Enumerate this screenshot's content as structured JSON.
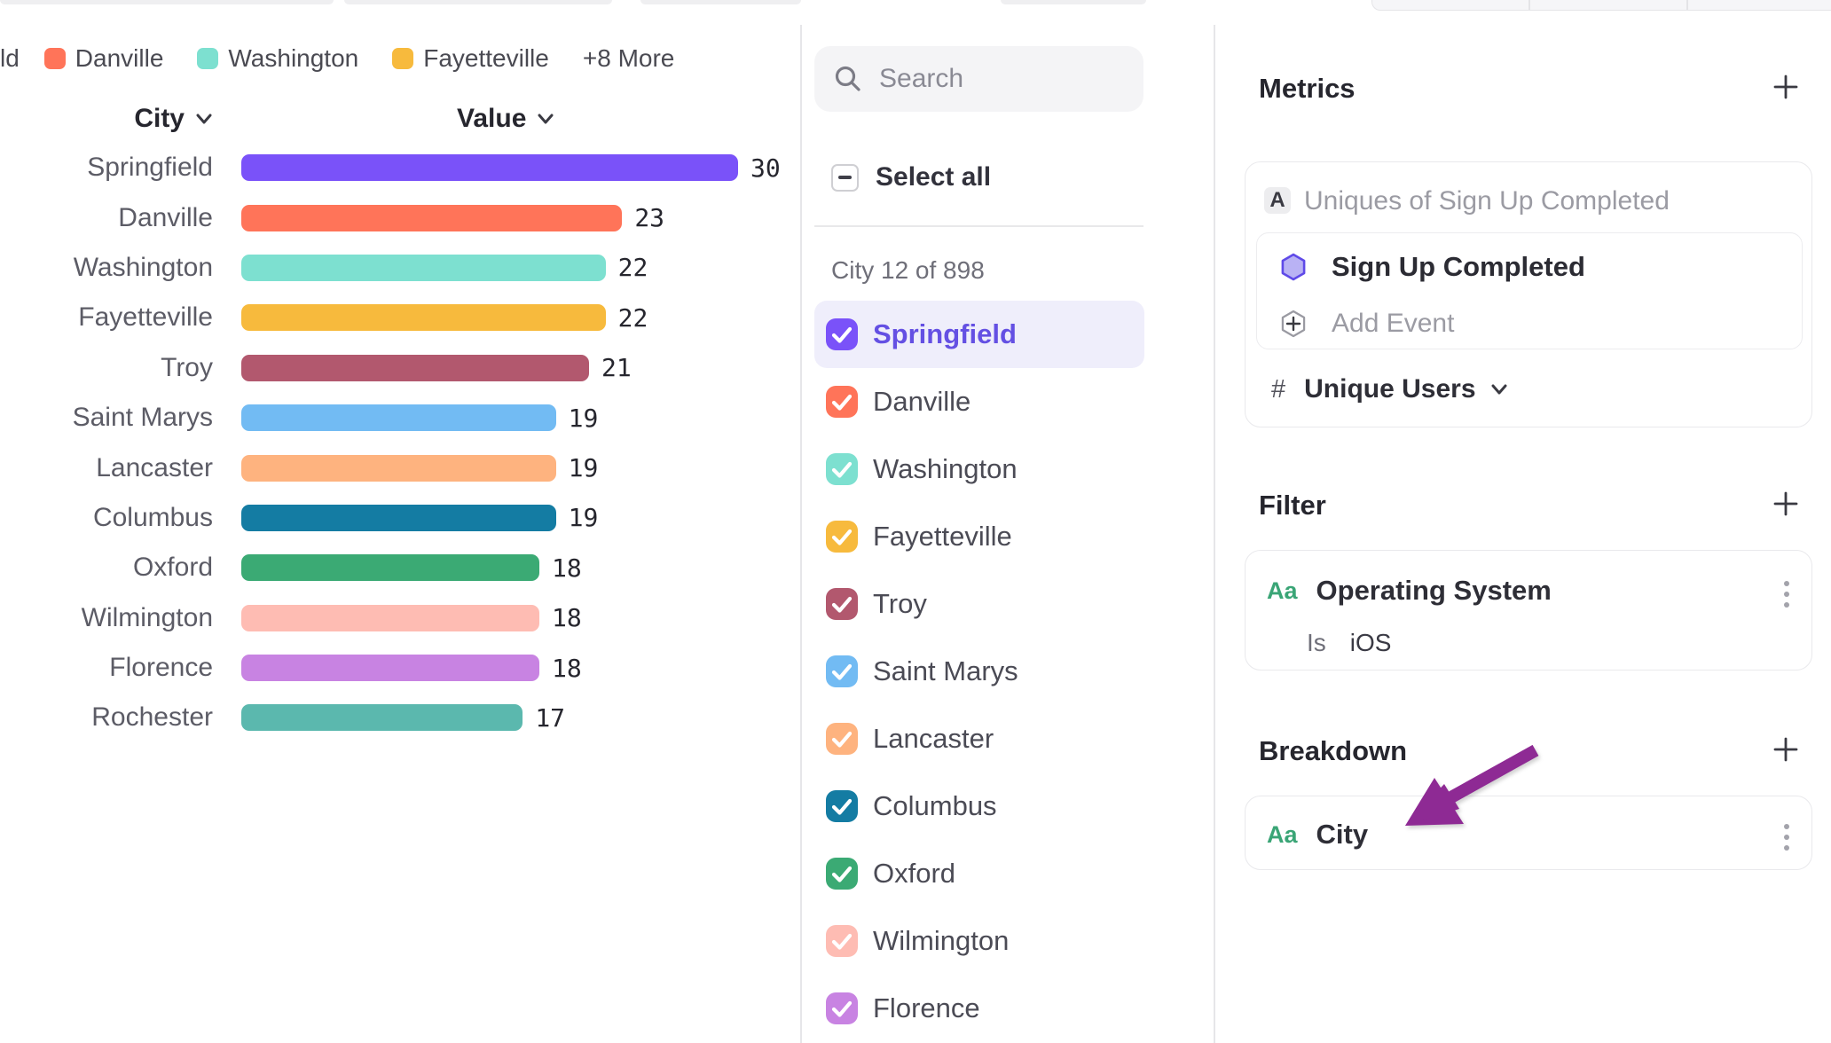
{
  "legend": {
    "truncated_item": "ld",
    "items": [
      {
        "label": "Danville",
        "color": "#ff7459"
      },
      {
        "label": "Washington",
        "color": "#7de0d0"
      },
      {
        "label": "Fayetteville",
        "color": "#f7ba3d"
      }
    ],
    "more_label": "+8 More"
  },
  "chart_data": {
    "type": "bar",
    "orientation": "horizontal",
    "column_headers": {
      "category": "City",
      "value": "Value"
    },
    "categories": [
      "Springfield",
      "Danville",
      "Washington",
      "Fayetteville",
      "Troy",
      "Saint Marys",
      "Lancaster",
      "Columbus",
      "Oxford",
      "Wilmington",
      "Florence",
      "Rochester"
    ],
    "values": [
      30,
      23,
      22,
      22,
      21,
      19,
      19,
      19,
      18,
      18,
      18,
      17
    ],
    "colors": [
      "#7a52f9",
      "#ff7459",
      "#7de0d0",
      "#f7ba3d",
      "#b2586e",
      "#72bbf3",
      "#feb37f",
      "#147ca3",
      "#3baa74",
      "#febcb3",
      "#c883e2",
      "#5bb8ae"
    ],
    "xlim": [
      0,
      30
    ],
    "grid": false,
    "value_labels": true
  },
  "city_selector": {
    "search_placeholder": "Search",
    "select_all_label": "Select all",
    "select_all_state": "indeterminate",
    "count_label": "City 12 of 898",
    "items": [
      {
        "label": "Springfield",
        "color": "#7a52f9",
        "checked": true,
        "highlighted": true
      },
      {
        "label": "Danville",
        "color": "#ff7459",
        "checked": true,
        "highlighted": false
      },
      {
        "label": "Washington",
        "color": "#7de0d0",
        "checked": true,
        "highlighted": false
      },
      {
        "label": "Fayetteville",
        "color": "#f7ba3d",
        "checked": true,
        "highlighted": false
      },
      {
        "label": "Troy",
        "color": "#b2586e",
        "checked": true,
        "highlighted": false
      },
      {
        "label": "Saint Marys",
        "color": "#72bbf3",
        "checked": true,
        "highlighted": false
      },
      {
        "label": "Lancaster",
        "color": "#feb37f",
        "checked": true,
        "highlighted": false
      },
      {
        "label": "Columbus",
        "color": "#147ca3",
        "checked": true,
        "highlighted": false
      },
      {
        "label": "Oxford",
        "color": "#3baa74",
        "checked": true,
        "highlighted": false
      },
      {
        "label": "Wilmington",
        "color": "#febcb3",
        "checked": true,
        "highlighted": false
      },
      {
        "label": "Florence",
        "color": "#c883e2",
        "checked": true,
        "highlighted": false
      }
    ]
  },
  "metrics_panel": {
    "title": "Metrics",
    "series_badge": "A",
    "series_label": "Uniques of Sign Up Completed",
    "event_name": "Sign Up Completed",
    "add_event_label": "Add Event",
    "measure_symbol": "#",
    "measure_label": "Unique Users"
  },
  "filter_panel": {
    "title": "Filter",
    "property_type_badge": "Aa",
    "property_label": "Operating System",
    "operator": "Is",
    "value": "iOS"
  },
  "breakdown_panel": {
    "title": "Breakdown",
    "property_type_badge": "Aa",
    "property_label": "City"
  },
  "ui_colors": {
    "selected_text": "#6450e3",
    "selected_row_bg": "#efeefb",
    "green_badge": "#3aa576",
    "arrow_annotation": "#8e2a94",
    "divider": "#e6e6e9"
  }
}
